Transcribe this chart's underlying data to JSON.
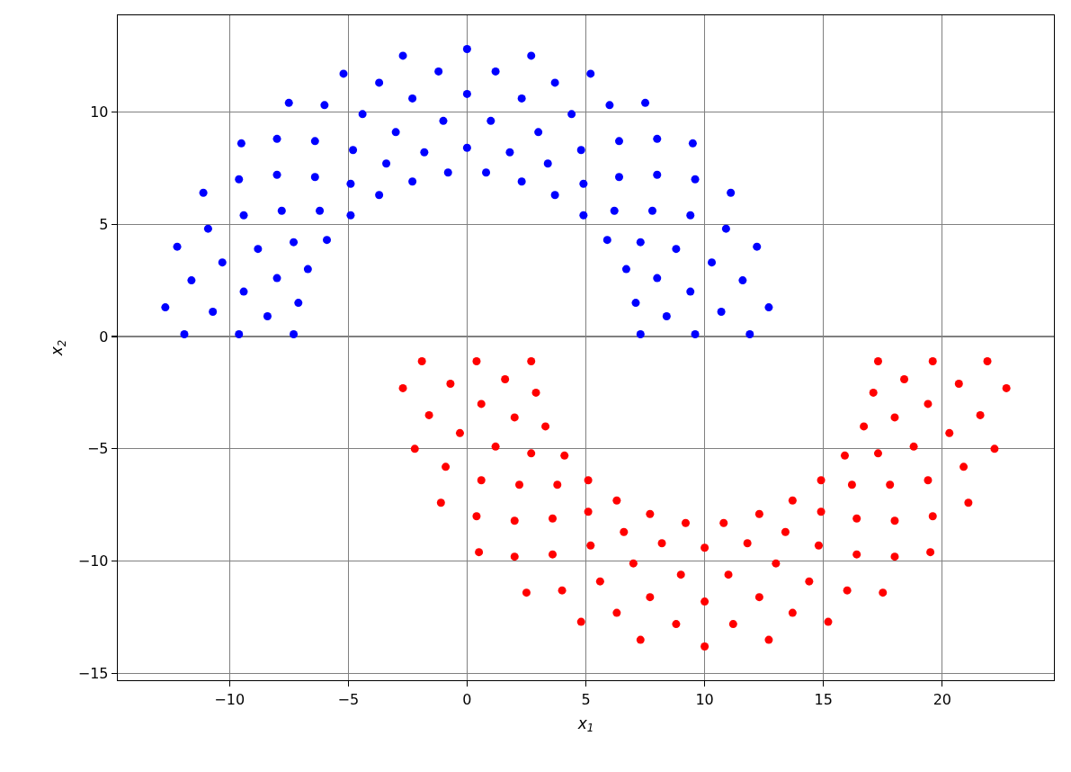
{
  "chart_data": {
    "type": "scatter",
    "xlabel": "x$_{1}$",
    "ylabel": "x$_{2}$",
    "xlim": [
      -14.7,
      24.7
    ],
    "ylim": [
      -15.3,
      14.3
    ],
    "xticks": [
      -10,
      -5,
      0,
      5,
      10,
      15,
      20
    ],
    "yticks": [
      -15,
      -10,
      -5,
      0,
      5,
      10
    ],
    "grid": true,
    "marker": "circle",
    "series": [
      {
        "color": "#0000ff",
        "x": [
          7.3,
          9.6,
          11.9,
          8.4,
          10.7,
          12.7,
          7.1,
          9.4,
          11.6,
          8.0,
          10.3,
          12.2,
          6.7,
          8.8,
          10.9,
          7.3,
          9.4,
          11.1,
          5.9,
          7.8,
          9.6,
          6.2,
          8.0,
          9.5,
          4.9,
          6.4,
          8.0,
          4.9,
          6.4,
          7.5,
          3.7,
          4.8,
          6.0,
          3.4,
          4.4,
          5.2,
          2.3,
          3.0,
          3.7,
          1.8,
          2.3,
          2.7,
          0.8,
          1.0,
          1.2,
          0,
          0,
          0,
          -0.8,
          -1.0,
          -1.2,
          -1.8,
          -2.3,
          -2.7,
          -2.3,
          -3.0,
          -3.7,
          -3.4,
          -4.4,
          -5.2,
          -3.7,
          -4.8,
          -6.0,
          -4.9,
          -6.4,
          -7.5,
          -4.9,
          -6.4,
          -8.0,
          -6.2,
          -8.0,
          -9.5,
          -5.9,
          -7.8,
          -9.6,
          -7.3,
          -9.4,
          -11.1,
          -6.7,
          -8.8,
          -10.9,
          -8.0,
          -10.3,
          -12.2,
          -7.1,
          -9.4,
          -11.6,
          -8.4,
          -10.7,
          -12.7,
          -7.3,
          -9.6,
          -11.9
        ],
        "values": [
          0.1,
          0.1,
          0.1,
          0.9,
          1.1,
          1.3,
          1.5,
          2.0,
          2.5,
          2.6,
          3.3,
          4.0,
          3.0,
          3.9,
          4.8,
          4.2,
          5.4,
          6.4,
          4.3,
          5.6,
          7.0,
          5.6,
          7.2,
          8.6,
          5.4,
          7.1,
          8.8,
          6.8,
          8.7,
          10.4,
          6.3,
          8.3,
          10.3,
          7.7,
          9.9,
          11.7,
          6.9,
          9.1,
          11.3,
          8.2,
          10.6,
          12.5,
          7.3,
          9.6,
          11.8,
          8.4,
          10.8,
          12.8,
          7.3,
          9.6,
          11.8,
          8.2,
          10.6,
          12.5,
          6.9,
          9.1,
          11.3,
          7.7,
          9.9,
          11.7,
          6.3,
          8.3,
          10.3,
          6.8,
          8.7,
          10.4,
          5.4,
          7.1,
          8.8,
          5.6,
          7.2,
          8.6,
          4.3,
          5.6,
          7.0,
          4.2,
          5.4,
          6.4,
          3.0,
          3.9,
          4.8,
          2.6,
          3.3,
          4.0,
          1.5,
          2.0,
          2.5,
          0.9,
          1.1,
          1.3,
          0.1,
          0.1,
          0.1
        ]
      },
      {
        "color": "#ff0000",
        "x": [
          17.3,
          19.6,
          21.9,
          18.4,
          20.7,
          22.7,
          17.1,
          19.4,
          21.6,
          18.0,
          20.3,
          22.2,
          16.7,
          18.8,
          20.9,
          17.3,
          19.4,
          21.1,
          15.9,
          17.8,
          19.6,
          16.2,
          18.0,
          19.5,
          14.9,
          16.4,
          18.0,
          14.9,
          16.4,
          17.5,
          13.7,
          14.8,
          16.0,
          13.4,
          14.4,
          15.2,
          12.3,
          13.0,
          13.7,
          11.8,
          12.3,
          12.7,
          10.8,
          11.0,
          11.2,
          10,
          10,
          10,
          9.2,
          9.0,
          8.8,
          8.2,
          7.7,
          7.3,
          7.7,
          7.0,
          6.3,
          6.6,
          5.6,
          4.8,
          6.3,
          5.2,
          4.0,
          5.1,
          3.6,
          2.5,
          5.1,
          3.6,
          2.0,
          3.8,
          2.0,
          0.5,
          4.1,
          2.2,
          0.4,
          2.7,
          0.6,
          -1.1,
          3.3,
          1.2,
          -0.9,
          2.0,
          -0.3,
          -2.2,
          2.9,
          0.6,
          -1.6,
          1.6,
          -0.7,
          -2.7,
          2.7,
          0.4,
          -1.9
        ],
        "values": [
          -1.1,
          -1.1,
          -1.1,
          -1.9,
          -2.1,
          -2.3,
          -2.5,
          -3.0,
          -3.5,
          -3.6,
          -4.3,
          -5.0,
          -4.0,
          -4.9,
          -5.8,
          -5.2,
          -6.4,
          -7.4,
          -5.3,
          -6.6,
          -8.0,
          -6.6,
          -8.2,
          -9.6,
          -6.4,
          -8.1,
          -9.8,
          -7.8,
          -9.7,
          -11.4,
          -7.3,
          -9.3,
          -11.3,
          -8.7,
          -10.9,
          -12.7,
          -7.9,
          -10.1,
          -12.3,
          -9.2,
          -11.6,
          -13.5,
          -8.3,
          -10.6,
          -12.8,
          -9.4,
          -11.8,
          -13.8,
          -8.3,
          -10.6,
          -12.8,
          -9.2,
          -11.6,
          -13.5,
          -7.9,
          -10.1,
          -12.3,
          -8.7,
          -10.9,
          -12.7,
          -7.3,
          -9.3,
          -11.3,
          -7.8,
          -9.7,
          -11.4,
          -6.4,
          -8.1,
          -9.8,
          -6.6,
          -8.2,
          -9.6,
          -5.3,
          -6.6,
          -8.0,
          -5.2,
          -6.4,
          -7.4,
          -4.0,
          -4.9,
          -5.8,
          -3.6,
          -4.3,
          -5.0,
          -2.5,
          -3.0,
          -3.5,
          -1.9,
          -2.1,
          -2.3,
          -1.1,
          -1.1,
          -1.1
        ]
      }
    ]
  }
}
